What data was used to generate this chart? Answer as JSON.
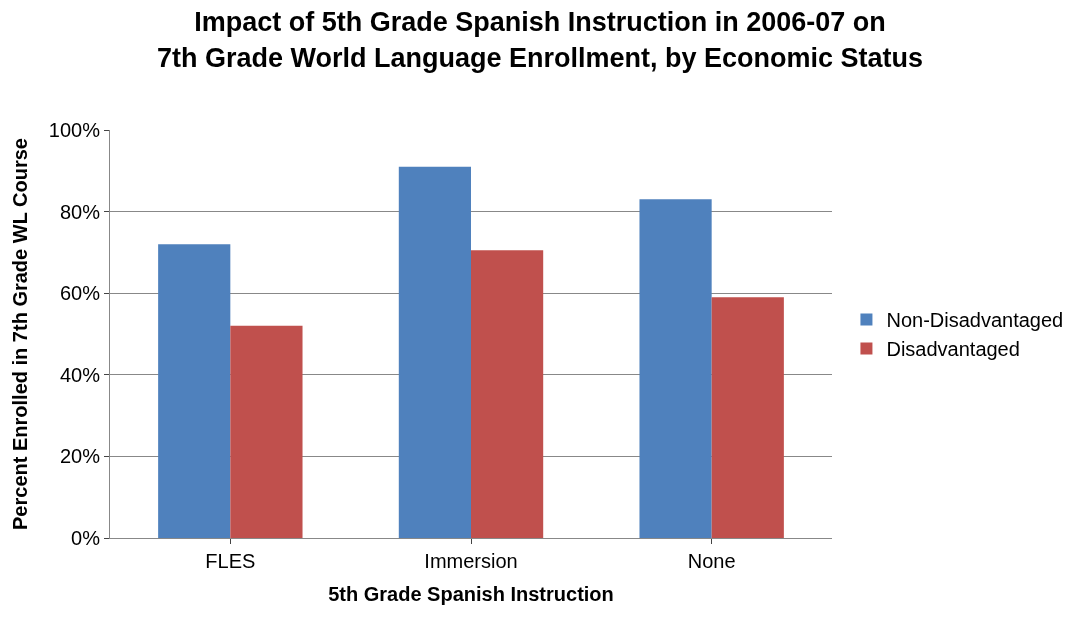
{
  "chart_data": {
    "type": "bar",
    "title": "Impact of 5th Grade Spanish Instruction in 2006-07 on\n7th Grade World Language Enrollment, by Economic Status",
    "xlabel": "5th Grade Spanish Instruction",
    "ylabel": "Percent Enrolled in 7th Grade WL Course",
    "categories": [
      "FLES",
      "Immersion",
      "None"
    ],
    "series": [
      {
        "name": "Non-Disadvantaged",
        "color": "#4f81bd",
        "values": [
          72,
          91,
          83
        ]
      },
      {
        "name": "Disadvantaged",
        "color": "#c0504d",
        "values": [
          52,
          70.5,
          59
        ]
      }
    ],
    "ylim": [
      0,
      100
    ],
    "yticks": [
      {
        "value": 0,
        "label": "0%"
      },
      {
        "value": 20,
        "label": "20%"
      },
      {
        "value": 40,
        "label": "40%"
      },
      {
        "value": 60,
        "label": "60%"
      },
      {
        "value": 80,
        "label": "80%"
      },
      {
        "value": 100,
        "label": "100%"
      }
    ],
    "grid": "y",
    "legend": "right"
  }
}
